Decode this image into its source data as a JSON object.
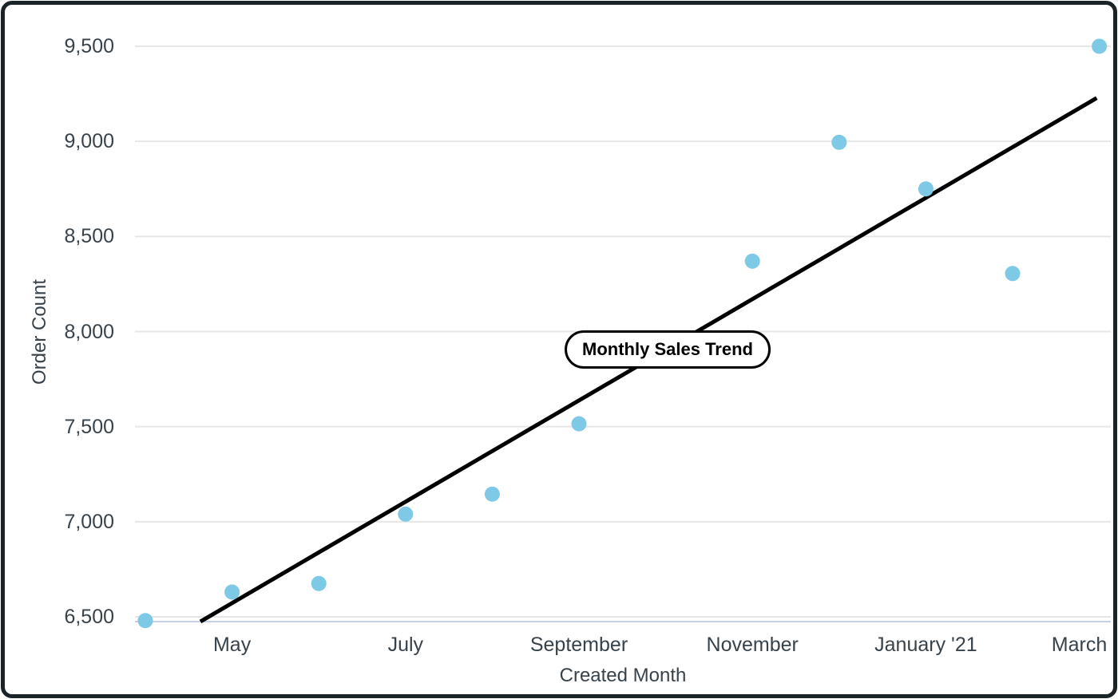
{
  "chart_data": {
    "type": "scatter",
    "title": "Monthly Sales Trend",
    "xlabel": "Created Month",
    "ylabel": "Order Count",
    "ylim": [
      6475,
      9680
    ],
    "grid": true,
    "points": [
      {
        "month": "April",
        "value": 6480
      },
      {
        "month": "May",
        "value": 6630
      },
      {
        "month": "June",
        "value": 6675
      },
      {
        "month": "July",
        "value": 7040
      },
      {
        "month": "August",
        "value": 7145
      },
      {
        "month": "September",
        "value": 7515
      },
      {
        "month": "October",
        "value": null
      },
      {
        "month": "November",
        "value": 8370
      },
      {
        "month": "December",
        "value": 8995
      },
      {
        "month": "January '21",
        "value": 8750
      },
      {
        "month": "February",
        "value": 8305
      },
      {
        "month": "March",
        "value": 9500
      }
    ],
    "trendline": {
      "start": {
        "month_index": 0.635,
        "value": 6475
      },
      "end": {
        "month_index": 10.97,
        "value": 9228
      }
    },
    "y_axis": {
      "ticks": [
        {
          "label": "6,500",
          "value": 6500
        },
        {
          "label": "7,000",
          "value": 7000
        },
        {
          "label": "7,500",
          "value": 7500
        },
        {
          "label": "8,000",
          "value": 8000
        },
        {
          "label": "8,500",
          "value": 8500
        },
        {
          "label": "9,000",
          "value": 9000
        },
        {
          "label": "9,500",
          "value": 9500
        }
      ]
    },
    "x_axis": {
      "ticks": [
        {
          "label": "May",
          "month_index": 1
        },
        {
          "label": "July",
          "month_index": 3
        },
        {
          "label": "September",
          "month_index": 5
        },
        {
          "label": "November",
          "month_index": 7
        },
        {
          "label": "January '21",
          "month_index": 9
        },
        {
          "label": "March",
          "month_index": 11
        }
      ]
    }
  },
  "colors": {
    "point": "#7ec9e6",
    "trend_line": "#000000",
    "gridline": "#e6e6e6",
    "axis_baseline": "#c7d0e6",
    "text": "#37424b",
    "frame_border": "#1a2428",
    "background": "#ffffff"
  }
}
